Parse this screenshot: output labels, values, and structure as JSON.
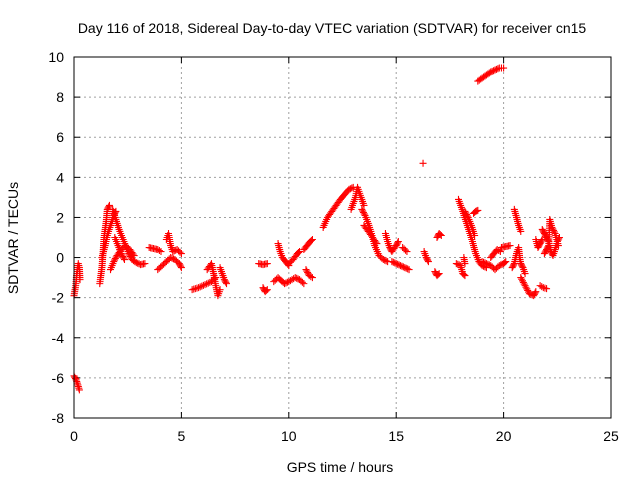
{
  "chart_data": {
    "type": "scatter",
    "title": "Day 116 of 2018, Sidereal Day-to-day VTEC variation (SDTVAR) for receiver cn15",
    "xlabel": "GPS time / hours",
    "ylabel": "SDTVAR / TECUs",
    "xlim": [
      0,
      25
    ],
    "ylim": [
      -8,
      10
    ],
    "xticks": [
      0,
      5,
      10,
      15,
      20,
      25
    ],
    "yticks": [
      -8,
      -6,
      -4,
      -2,
      0,
      2,
      4,
      6,
      8,
      10
    ],
    "grid": true,
    "marker": "+",
    "color": "#ff0000",
    "series": [
      {
        "name": "SDTVAR",
        "segments": [
          [
            [
              0.0,
              -1.9
            ],
            [
              0.08,
              -1.4
            ],
            [
              0.12,
              -0.9
            ],
            [
              0.16,
              -0.6
            ],
            [
              0.2,
              -0.3
            ],
            [
              0.25,
              -0.5
            ],
            [
              0.28,
              -1.1
            ]
          ],
          [
            [
              0.0,
              -5.9
            ],
            [
              0.1,
              -6.1
            ],
            [
              0.18,
              -6.35
            ],
            [
              0.25,
              -6.6
            ]
          ],
          [
            [
              1.2,
              -1.3
            ],
            [
              1.3,
              -0.5
            ],
            [
              1.35,
              0.2
            ],
            [
              1.4,
              1.0
            ],
            [
              1.5,
              1.8
            ],
            [
              1.55,
              2.4
            ],
            [
              1.65,
              2.6
            ]
          ],
          [
            [
              1.3,
              0.0
            ],
            [
              1.45,
              0.6
            ],
            [
              1.55,
              1.1
            ],
            [
              1.7,
              1.6
            ],
            [
              1.85,
              2.1
            ],
            [
              1.95,
              2.3
            ]
          ],
          [
            [
              1.8,
              2.4
            ],
            [
              1.95,
              1.9
            ],
            [
              2.1,
              1.4
            ],
            [
              2.25,
              1.0
            ],
            [
              2.4,
              0.6
            ],
            [
              2.55,
              0.2
            ],
            [
              2.7,
              -0.1
            ],
            [
              2.9,
              -0.25
            ],
            [
              3.1,
              -0.35
            ],
            [
              3.3,
              -0.3
            ]
          ],
          [
            [
              1.7,
              -0.6
            ],
            [
              1.85,
              -0.2
            ],
            [
              2.0,
              0.1
            ],
            [
              2.2,
              0.4
            ],
            [
              2.4,
              0.6
            ],
            [
              2.6,
              0.4
            ],
            [
              2.8,
              0.1
            ]
          ],
          [
            [
              1.9,
              1.0
            ],
            [
              2.05,
              0.6
            ],
            [
              2.2,
              0.2
            ],
            [
              2.35,
              -0.1
            ]
          ],
          [
            [
              3.5,
              0.5
            ],
            [
              3.7,
              0.45
            ],
            [
              3.9,
              0.4
            ],
            [
              4.05,
              0.3
            ]
          ],
          [
            [
              3.9,
              -0.6
            ],
            [
              4.1,
              -0.4
            ],
            [
              4.3,
              -0.2
            ],
            [
              4.5,
              0.0
            ],
            [
              4.7,
              -0.1
            ],
            [
              4.9,
              -0.3
            ],
            [
              5.0,
              -0.5
            ]
          ],
          [
            [
              4.3,
              0.9
            ],
            [
              4.4,
              1.2
            ],
            [
              4.5,
              0.6
            ],
            [
              4.6,
              0.3
            ],
            [
              4.8,
              0.4
            ],
            [
              5.0,
              0.2
            ]
          ],
          [
            [
              5.5,
              -1.6
            ],
            [
              5.8,
              -1.5
            ],
            [
              6.1,
              -1.35
            ],
            [
              6.4,
              -1.2
            ],
            [
              6.6,
              -1.0
            ]
          ],
          [
            [
              6.2,
              -0.6
            ],
            [
              6.4,
              -0.3
            ],
            [
              6.5,
              -0.8
            ],
            [
              6.6,
              -1.4
            ],
            [
              6.7,
              -1.9
            ],
            [
              6.8,
              -1.6
            ]
          ],
          [
            [
              6.8,
              -0.5
            ],
            [
              6.9,
              -0.8
            ],
            [
              7.0,
              -1.1
            ],
            [
              7.1,
              -1.3
            ]
          ],
          [
            [
              8.6,
              -0.3
            ],
            [
              8.8,
              -0.35
            ],
            [
              9.0,
              -0.3
            ]
          ],
          [
            [
              8.8,
              -1.5
            ],
            [
              8.9,
              -1.7
            ],
            [
              9.0,
              -1.6
            ]
          ],
          [
            [
              9.3,
              -1.2
            ],
            [
              9.5,
              -1.0
            ],
            [
              9.8,
              -1.3
            ],
            [
              10.0,
              -1.2
            ],
            [
              10.3,
              -1.0
            ],
            [
              10.5,
              -1.1
            ],
            [
              10.7,
              -1.3
            ]
          ],
          [
            [
              9.5,
              0.7
            ],
            [
              9.6,
              0.3
            ],
            [
              9.7,
              0.0
            ],
            [
              9.85,
              -0.2
            ],
            [
              10.0,
              -0.4
            ]
          ],
          [
            [
              10.0,
              -0.3
            ],
            [
              10.2,
              -0.1
            ],
            [
              10.4,
              0.2
            ],
            [
              10.5,
              0.3
            ]
          ],
          [
            [
              10.7,
              0.4
            ],
            [
              10.85,
              0.6
            ],
            [
              11.0,
              0.8
            ],
            [
              11.1,
              0.9
            ]
          ],
          [
            [
              10.8,
              -0.6
            ],
            [
              10.95,
              -0.9
            ],
            [
              11.1,
              -1.0
            ]
          ],
          [
            [
              11.6,
              1.5
            ],
            [
              11.8,
              2.0
            ],
            [
              12.0,
              2.3
            ],
            [
              12.2,
              2.6
            ],
            [
              12.4,
              2.9
            ],
            [
              12.6,
              3.15
            ],
            [
              12.8,
              3.4
            ],
            [
              13.0,
              3.5
            ]
          ],
          [
            [
              12.9,
              2.4
            ],
            [
              13.0,
              2.7
            ],
            [
              13.1,
              3.0
            ],
            [
              13.2,
              3.5
            ],
            [
              13.3,
              3.2
            ],
            [
              13.4,
              2.9
            ],
            [
              13.5,
              2.6
            ]
          ],
          [
            [
              13.4,
              2.4
            ],
            [
              13.55,
              2.1
            ],
            [
              13.7,
              1.7
            ],
            [
              13.85,
              1.2
            ],
            [
              14.0,
              0.6
            ],
            [
              14.2,
              0.1
            ],
            [
              14.4,
              -0.1
            ],
            [
              14.6,
              -0.2
            ]
          ],
          [
            [
              13.5,
              1.6
            ],
            [
              13.7,
              1.3
            ],
            [
              13.9,
              1.0
            ],
            [
              14.1,
              0.7
            ]
          ],
          [
            [
              14.5,
              1.2
            ],
            [
              14.6,
              0.8
            ],
            [
              14.7,
              0.5
            ],
            [
              14.8,
              0.3
            ],
            [
              15.0,
              0.6
            ],
            [
              15.1,
              0.8
            ]
          ],
          [
            [
              14.8,
              -0.2
            ],
            [
              15.0,
              -0.3
            ],
            [
              15.2,
              -0.4
            ],
            [
              15.4,
              -0.5
            ],
            [
              15.6,
              -0.6
            ]
          ],
          [
            [
              15.3,
              0.5
            ],
            [
              15.5,
              0.3
            ]
          ],
          [
            [
              16.25,
              4.7
            ]
          ],
          [
            [
              16.3,
              0.3
            ],
            [
              16.4,
              0.0
            ],
            [
              16.5,
              -0.2
            ]
          ],
          [
            [
              16.8,
              -0.7
            ],
            [
              16.9,
              -0.9
            ],
            [
              17.0,
              -0.8
            ]
          ],
          [
            [
              16.9,
              1.0
            ],
            [
              17.0,
              1.2
            ],
            [
              17.1,
              1.1
            ]
          ],
          [
            [
              17.8,
              -0.3
            ],
            [
              18.0,
              -0.4
            ],
            [
              18.1,
              -0.8
            ],
            [
              18.2,
              -0.9
            ]
          ],
          [
            [
              17.9,
              2.9
            ],
            [
              18.0,
              2.6
            ],
            [
              18.1,
              2.3
            ],
            [
              18.25,
              1.8
            ],
            [
              18.4,
              1.3
            ],
            [
              18.55,
              0.8
            ],
            [
              18.7,
              0.2
            ],
            [
              18.85,
              -0.2
            ],
            [
              19.0,
              -0.4
            ],
            [
              19.2,
              -0.5
            ]
          ],
          [
            [
              18.2,
              2.3
            ],
            [
              18.35,
              2.0
            ],
            [
              18.5,
              1.6
            ],
            [
              18.65,
              1.1
            ]
          ],
          [
            [
              18.15,
              0.0
            ],
            [
              18.2,
              -0.3
            ]
          ],
          [
            [
              18.6,
              2.2
            ],
            [
              18.7,
              2.3
            ],
            [
              18.8,
              2.35
            ]
          ],
          [
            [
              19.0,
              -0.2
            ],
            [
              19.2,
              -0.3
            ],
            [
              19.4,
              -0.4
            ],
            [
              19.6,
              -0.6
            ],
            [
              19.8,
              -0.4
            ],
            [
              20.0,
              -0.3
            ],
            [
              20.1,
              -0.2
            ]
          ],
          [
            [
              19.4,
              0.0
            ],
            [
              19.55,
              0.2
            ],
            [
              19.7,
              0.4
            ],
            [
              19.85,
              0.3
            ]
          ],
          [
            [
              18.8,
              8.8
            ],
            [
              19.0,
              8.95
            ],
            [
              19.2,
              9.1
            ],
            [
              19.4,
              9.25
            ],
            [
              19.6,
              9.35
            ],
            [
              19.8,
              9.45
            ],
            [
              20.0,
              9.45
            ]
          ],
          [
            [
              19.9,
              0.5
            ],
            [
              20.1,
              0.55
            ],
            [
              20.3,
              0.6
            ]
          ],
          [
            [
              20.4,
              -0.5
            ],
            [
              20.5,
              -0.3
            ],
            [
              20.6,
              0.2
            ],
            [
              20.7,
              0.5
            ],
            [
              20.75,
              0.0
            ],
            [
              20.8,
              -0.3
            ],
            [
              20.9,
              -0.5
            ],
            [
              21.0,
              -0.8
            ]
          ],
          [
            [
              20.5,
              2.4
            ],
            [
              20.6,
              2.0
            ],
            [
              20.7,
              1.6
            ],
            [
              20.8,
              1.3
            ]
          ],
          [
            [
              20.8,
              -1.0
            ],
            [
              21.0,
              -1.4
            ],
            [
              21.2,
              -1.8
            ],
            [
              21.4,
              -1.9
            ],
            [
              21.5,
              -1.7
            ]
          ],
          [
            [
              21.5,
              0.9
            ],
            [
              21.6,
              0.5
            ],
            [
              21.7,
              0.7
            ],
            [
              21.8,
              0.9
            ]
          ],
          [
            [
              21.7,
              -1.4
            ],
            [
              21.85,
              -1.5
            ],
            [
              22.0,
              -1.55
            ]
          ],
          [
            [
              21.8,
              1.4
            ],
            [
              21.9,
              1.2
            ],
            [
              22.0,
              1.0
            ],
            [
              22.1,
              0.8
            ],
            [
              22.2,
              0.3
            ],
            [
              22.3,
              0.1
            ],
            [
              22.4,
              0.4
            ],
            [
              22.5,
              0.8
            ],
            [
              22.6,
              1.0
            ]
          ],
          [
            [
              21.9,
              0.2
            ],
            [
              22.0,
              0.4
            ],
            [
              22.1,
              0.6
            ],
            [
              22.15,
              1.9
            ],
            [
              22.25,
              1.5
            ],
            [
              22.4,
              1.2
            ],
            [
              22.55,
              0.6
            ]
          ]
        ]
      }
    ]
  }
}
